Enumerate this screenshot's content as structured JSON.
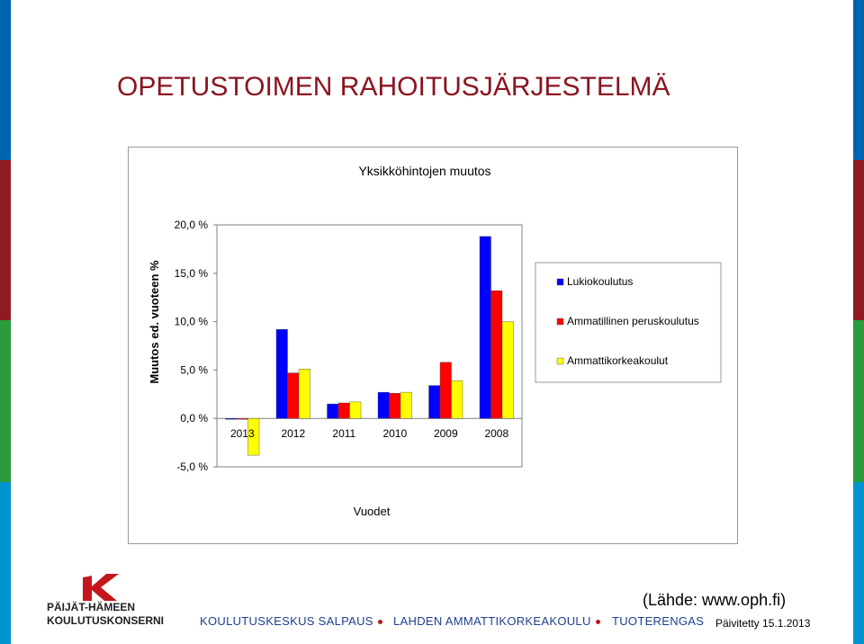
{
  "page": {
    "title": "OPETUSTOIMEN RAHOITUSJÄRJESTELMÄ",
    "source": "(Lähde: www.oph.fi)",
    "updated": "Päivitetty 15.1.2013"
  },
  "branding": {
    "logo_line1": "PÄIJÄT-HÄMEEN",
    "logo_line2": "KOULUTUSKONSERNI",
    "footer_items": [
      "KOULUTUSKESKUS SALPAUS",
      "LAHDEN AMMATTIKORKEAKOULU",
      "TUOTERENGAS"
    ],
    "colors": {
      "title": "#8b1520",
      "footer_text": "#1f3f8f",
      "logo_red": "#c4161c",
      "stripes": [
        "#0063b0",
        "#8e1b20",
        "#2a9a3c",
        "#0094d0"
      ]
    }
  },
  "chart_data": {
    "type": "bar",
    "title": "Yksikköhintojen muutos",
    "xlabel": "Vuodet",
    "ylabel": "Muutos ed. vuoteen %",
    "categories": [
      "2013",
      "2012",
      "2011",
      "2010",
      "2009",
      "2008"
    ],
    "series": [
      {
        "name": "Lukiokoulutus",
        "color": "#0000ff",
        "values": [
          0.0,
          9.2,
          1.5,
          2.7,
          3.4,
          18.8
        ]
      },
      {
        "name": "Ammatillinen peruskoulutus",
        "color": "#ff0000",
        "values": [
          0.0,
          4.7,
          1.6,
          2.6,
          5.8,
          13.2
        ]
      },
      {
        "name": "Ammattikorkeakoulut",
        "color": "#ffff00",
        "values": [
          -3.8,
          5.1,
          1.7,
          2.7,
          3.9,
          10.0
        ]
      }
    ],
    "ylim": [
      -5,
      20
    ],
    "yticks": [
      20,
      15,
      10,
      5,
      0,
      -5
    ],
    "ytick_labels": [
      "20,0 %",
      "15,0 %",
      "10,0 %",
      "5,0 %",
      "0,0 %",
      "-5,0 %"
    ],
    "grid": false,
    "legend": "right"
  }
}
